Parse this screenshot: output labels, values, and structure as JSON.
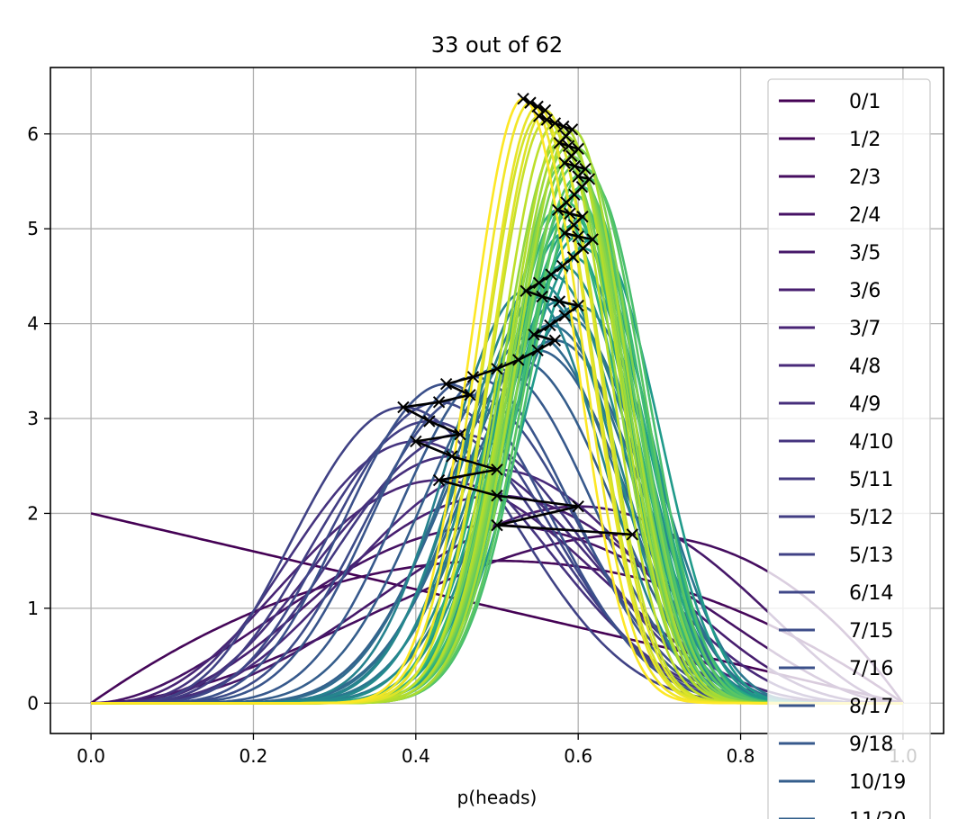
{
  "chart_data": {
    "type": "line",
    "title": "33 out of 62",
    "xlabel": "p(heads)",
    "ylabel": "",
    "xlim": [
      -0.05,
      1.05
    ],
    "ylim": [
      -0.32,
      6.7
    ],
    "xticks": [
      0.0,
      0.2,
      0.4,
      0.6,
      0.8,
      1.0
    ],
    "xtick_labels": [
      "0.0",
      "0.2",
      "0.4",
      "0.6",
      "0.8",
      "1.0"
    ],
    "yticks": [
      0,
      1,
      2,
      3,
      4,
      5,
      6
    ],
    "ytick_labels": [
      "0",
      "1",
      "2",
      "3",
      "4",
      "5",
      "6"
    ],
    "grid": true,
    "legend_position": "top-right",
    "colormap": "viridis",
    "marker_path_color": "#000000",
    "series_legend": [
      "0/1",
      "1/2",
      "2/3",
      "2/4",
      "3/5",
      "3/6",
      "3/7",
      "4/8",
      "4/9",
      "4/10",
      "5/11",
      "5/12",
      "5/13",
      "6/14",
      "7/15",
      "7/16",
      "8/17",
      "9/18",
      "10/19",
      "11/20"
    ],
    "trials": [
      [
        0,
        1
      ],
      [
        1,
        2
      ],
      [
        2,
        3
      ],
      [
        2,
        4
      ],
      [
        3,
        5
      ],
      [
        3,
        6
      ],
      [
        3,
        7
      ],
      [
        4,
        8
      ],
      [
        4,
        9
      ],
      [
        4,
        10
      ],
      [
        5,
        11
      ],
      [
        5,
        12
      ],
      [
        5,
        13
      ],
      [
        6,
        14
      ],
      [
        7,
        15
      ],
      [
        7,
        16
      ],
      [
        8,
        17
      ],
      [
        9,
        18
      ],
      [
        10,
        19
      ],
      [
        11,
        20
      ],
      [
        12,
        21
      ],
      [
        12,
        22
      ],
      [
        13,
        23
      ],
      [
        14,
        24
      ],
      [
        15,
        25
      ],
      [
        15,
        26
      ],
      [
        15,
        27
      ],
      [
        15,
        28
      ],
      [
        16,
        29
      ],
      [
        17,
        30
      ],
      [
        18,
        31
      ],
      [
        19,
        32
      ],
      [
        20,
        33
      ],
      [
        21,
        34
      ],
      [
        21,
        35
      ],
      [
        21,
        36
      ],
      [
        22,
        37
      ],
      [
        23,
        38
      ],
      [
        23,
        39
      ],
      [
        23,
        40
      ],
      [
        24,
        41
      ],
      [
        25,
        42
      ],
      [
        26,
        43
      ],
      [
        27,
        44
      ],
      [
        27,
        45
      ],
      [
        28,
        46
      ],
      [
        28,
        47
      ],
      [
        28,
        48
      ],
      [
        29,
        49
      ],
      [
        30,
        50
      ],
      [
        30,
        51
      ],
      [
        30,
        52
      ],
      [
        31,
        53
      ],
      [
        32,
        54
      ],
      [
        32,
        55
      ],
      [
        32,
        56
      ],
      [
        32,
        57
      ],
      [
        32,
        58
      ],
      [
        33,
        59
      ],
      [
        33,
        60
      ],
      [
        33,
        61
      ],
      [
        33,
        62
      ]
    ]
  }
}
